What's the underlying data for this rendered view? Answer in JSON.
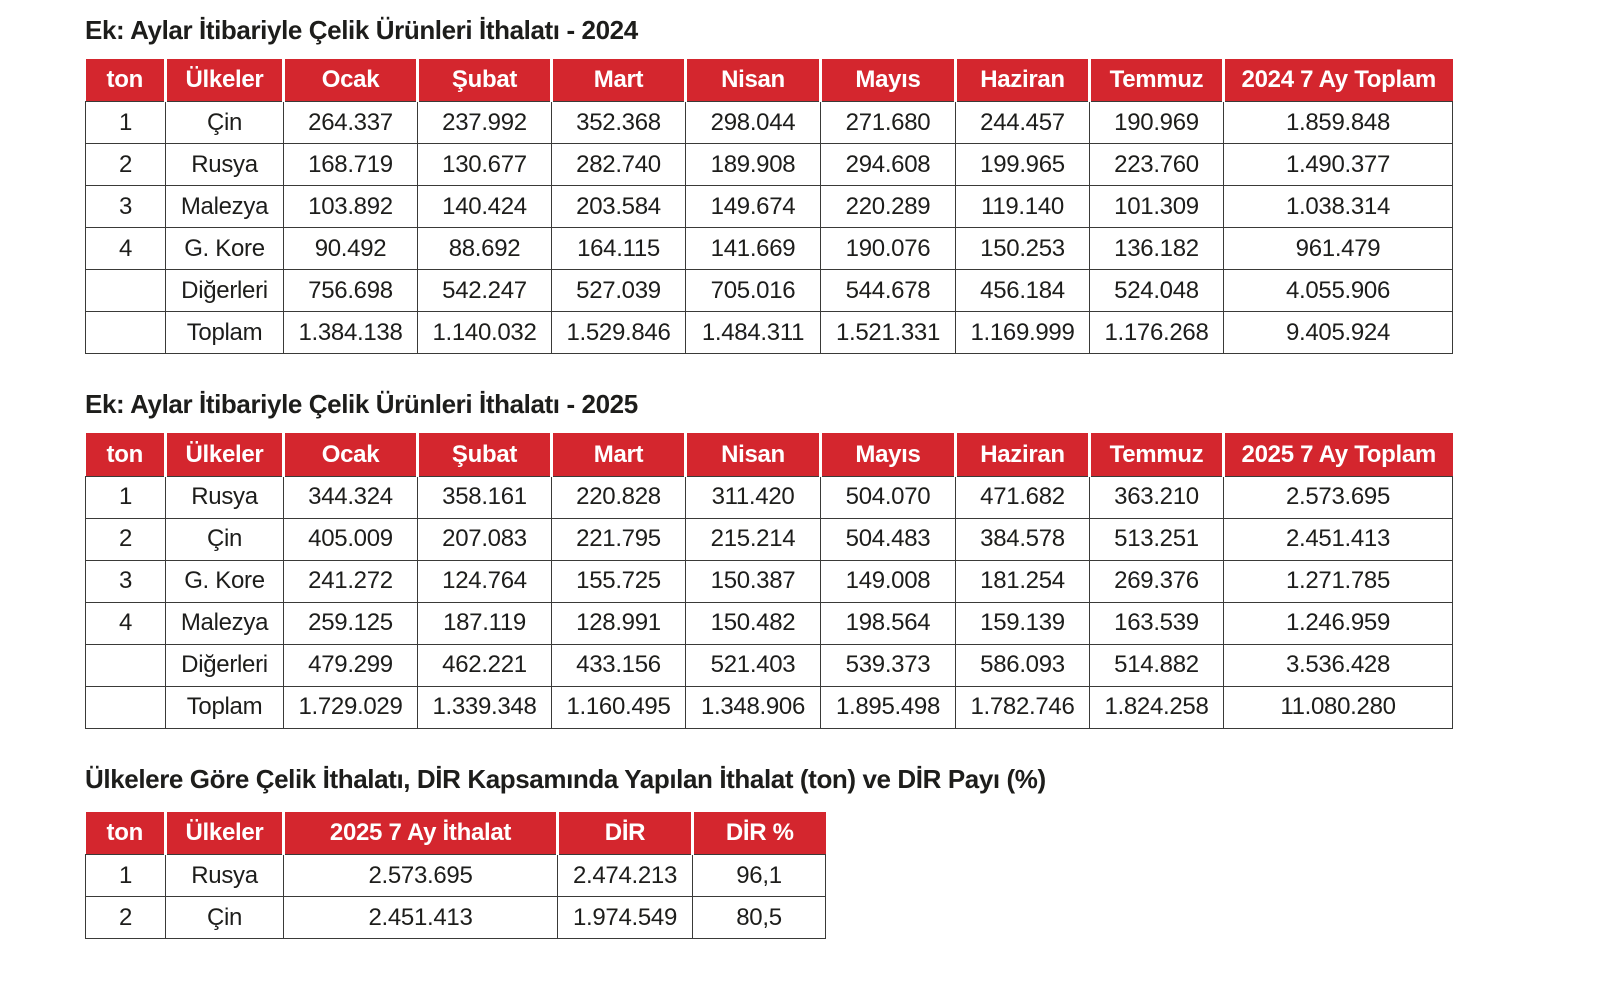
{
  "accent_color": "#d4262e",
  "tables": [
    {
      "title": "Ek: Aylar İtibariyle Çelik Ürünleri İthalatı -  2024",
      "headers": [
        "ton",
        "Ülkeler",
        "Ocak",
        "Şubat",
        "Mart",
        "Nisan",
        "Mayıs",
        "Haziran",
        "Temmuz",
        "2024 7 Ay Toplam"
      ],
      "rows": [
        [
          "1",
          "Çin",
          "264.337",
          "237.992",
          "352.368",
          "298.044",
          "271.680",
          "244.457",
          "190.969",
          "1.859.848"
        ],
        [
          "2",
          "Rusya",
          "168.719",
          "130.677",
          "282.740",
          "189.908",
          "294.608",
          "199.965",
          "223.760",
          "1.490.377"
        ],
        [
          "3",
          "Malezya",
          "103.892",
          "140.424",
          "203.584",
          "149.674",
          "220.289",
          "119.140",
          "101.309",
          "1.038.314"
        ],
        [
          "4",
          "G. Kore",
          "90.492",
          "88.692",
          "164.115",
          "141.669",
          "190.076",
          "150.253",
          "136.182",
          "961.479"
        ],
        [
          "",
          "Diğerleri",
          "756.698",
          "542.247",
          "527.039",
          "705.016",
          "544.678",
          "456.184",
          "524.048",
          "4.055.906"
        ],
        [
          "",
          "Toplam",
          "1.384.138",
          "1.140.032",
          "1.529.846",
          "1.484.311",
          "1.521.331",
          "1.169.999",
          "1.176.268",
          "9.405.924"
        ]
      ]
    },
    {
      "title": "Ek: Aylar İtibariyle Çelik Ürünleri İthalatı -  2025",
      "headers": [
        "ton",
        "Ülkeler",
        "Ocak",
        "Şubat",
        "Mart",
        "Nisan",
        "Mayıs",
        "Haziran",
        "Temmuz",
        "2025 7 Ay Toplam"
      ],
      "rows": [
        [
          "1",
          "Rusya",
          "344.324",
          "358.161",
          "220.828",
          "311.420",
          "504.070",
          "471.682",
          "363.210",
          "2.573.695"
        ],
        [
          "2",
          "Çin",
          "405.009",
          "207.083",
          "221.795",
          "215.214",
          "504.483",
          "384.578",
          "513.251",
          "2.451.413"
        ],
        [
          "3",
          "G. Kore",
          "241.272",
          "124.764",
          "155.725",
          "150.387",
          "149.008",
          "181.254",
          "269.376",
          "1.271.785"
        ],
        [
          "4",
          "Malezya",
          "259.125",
          "187.119",
          "128.991",
          "150.482",
          "198.564",
          "159.139",
          "163.539",
          "1.246.959"
        ],
        [
          "",
          "Diğerleri",
          "479.299",
          "462.221",
          "433.156",
          "521.403",
          "539.373",
          "586.093",
          "514.882",
          "3.536.428"
        ],
        [
          "",
          "Toplam",
          "1.729.029",
          "1.339.348",
          "1.160.495",
          "1.348.906",
          "1.895.498",
          "1.782.746",
          "1.824.258",
          "11.080.280"
        ]
      ]
    },
    {
      "title": "Ülkelere Göre Çelik İthalatı, DİR Kapsamında Yapılan İthalat (ton) ve DİR Payı (%)",
      "headers": [
        "ton",
        "Ülkeler",
        "2025 7 Ay İthalat",
        "DİR",
        "DİR %"
      ],
      "rows": [
        [
          "1",
          "Rusya",
          "2.573.695",
          "2.474.213",
          "96,1"
        ],
        [
          "2",
          "Çin",
          "2.451.413",
          "1.974.549",
          "80,5"
        ]
      ]
    }
  ]
}
